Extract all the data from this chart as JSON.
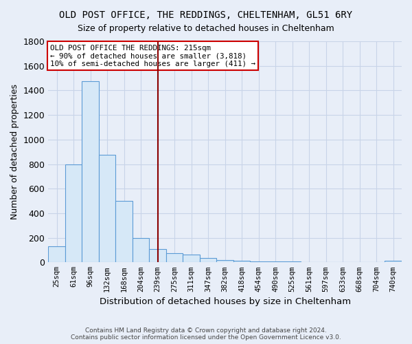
{
  "title": "OLD POST OFFICE, THE REDDINGS, CHELTENHAM, GL51 6RY",
  "subtitle": "Size of property relative to detached houses in Cheltenham",
  "xlabel": "Distribution of detached houses by size in Cheltenham",
  "ylabel": "Number of detached properties",
  "categories": [
    "25sqm",
    "61sqm",
    "96sqm",
    "132sqm",
    "168sqm",
    "204sqm",
    "239sqm",
    "275sqm",
    "311sqm",
    "347sqm",
    "382sqm",
    "418sqm",
    "454sqm",
    "490sqm",
    "525sqm",
    "561sqm",
    "597sqm",
    "633sqm",
    "668sqm",
    "704sqm",
    "740sqm"
  ],
  "values": [
    130,
    800,
    1475,
    875,
    500,
    200,
    110,
    75,
    65,
    35,
    20,
    15,
    10,
    8,
    5,
    4,
    3,
    2,
    2,
    2,
    15
  ],
  "bar_color": "#d6e8f7",
  "bar_edge_color": "#5b9bd5",
  "vline_x_index": 6,
  "vline_color": "#8b0000",
  "annotation_text": "OLD POST OFFICE THE REDDINGS: 215sqm\n← 90% of detached houses are smaller (3,818)\n10% of semi-detached houses are larger (411) →",
  "annotation_box_color": "#ffffff",
  "annotation_box_edge": "#cc0000",
  "ylim": [
    0,
    1800
  ],
  "yticks": [
    0,
    200,
    400,
    600,
    800,
    1000,
    1200,
    1400,
    1600,
    1800
  ],
  "footer": "Contains HM Land Registry data © Crown copyright and database right 2024.\nContains public sector information licensed under the Open Government Licence v3.0.",
  "bg_color": "#e8eef8",
  "plot_bg_color": "#e8eef8",
  "grid_color": "#c8d4e8"
}
